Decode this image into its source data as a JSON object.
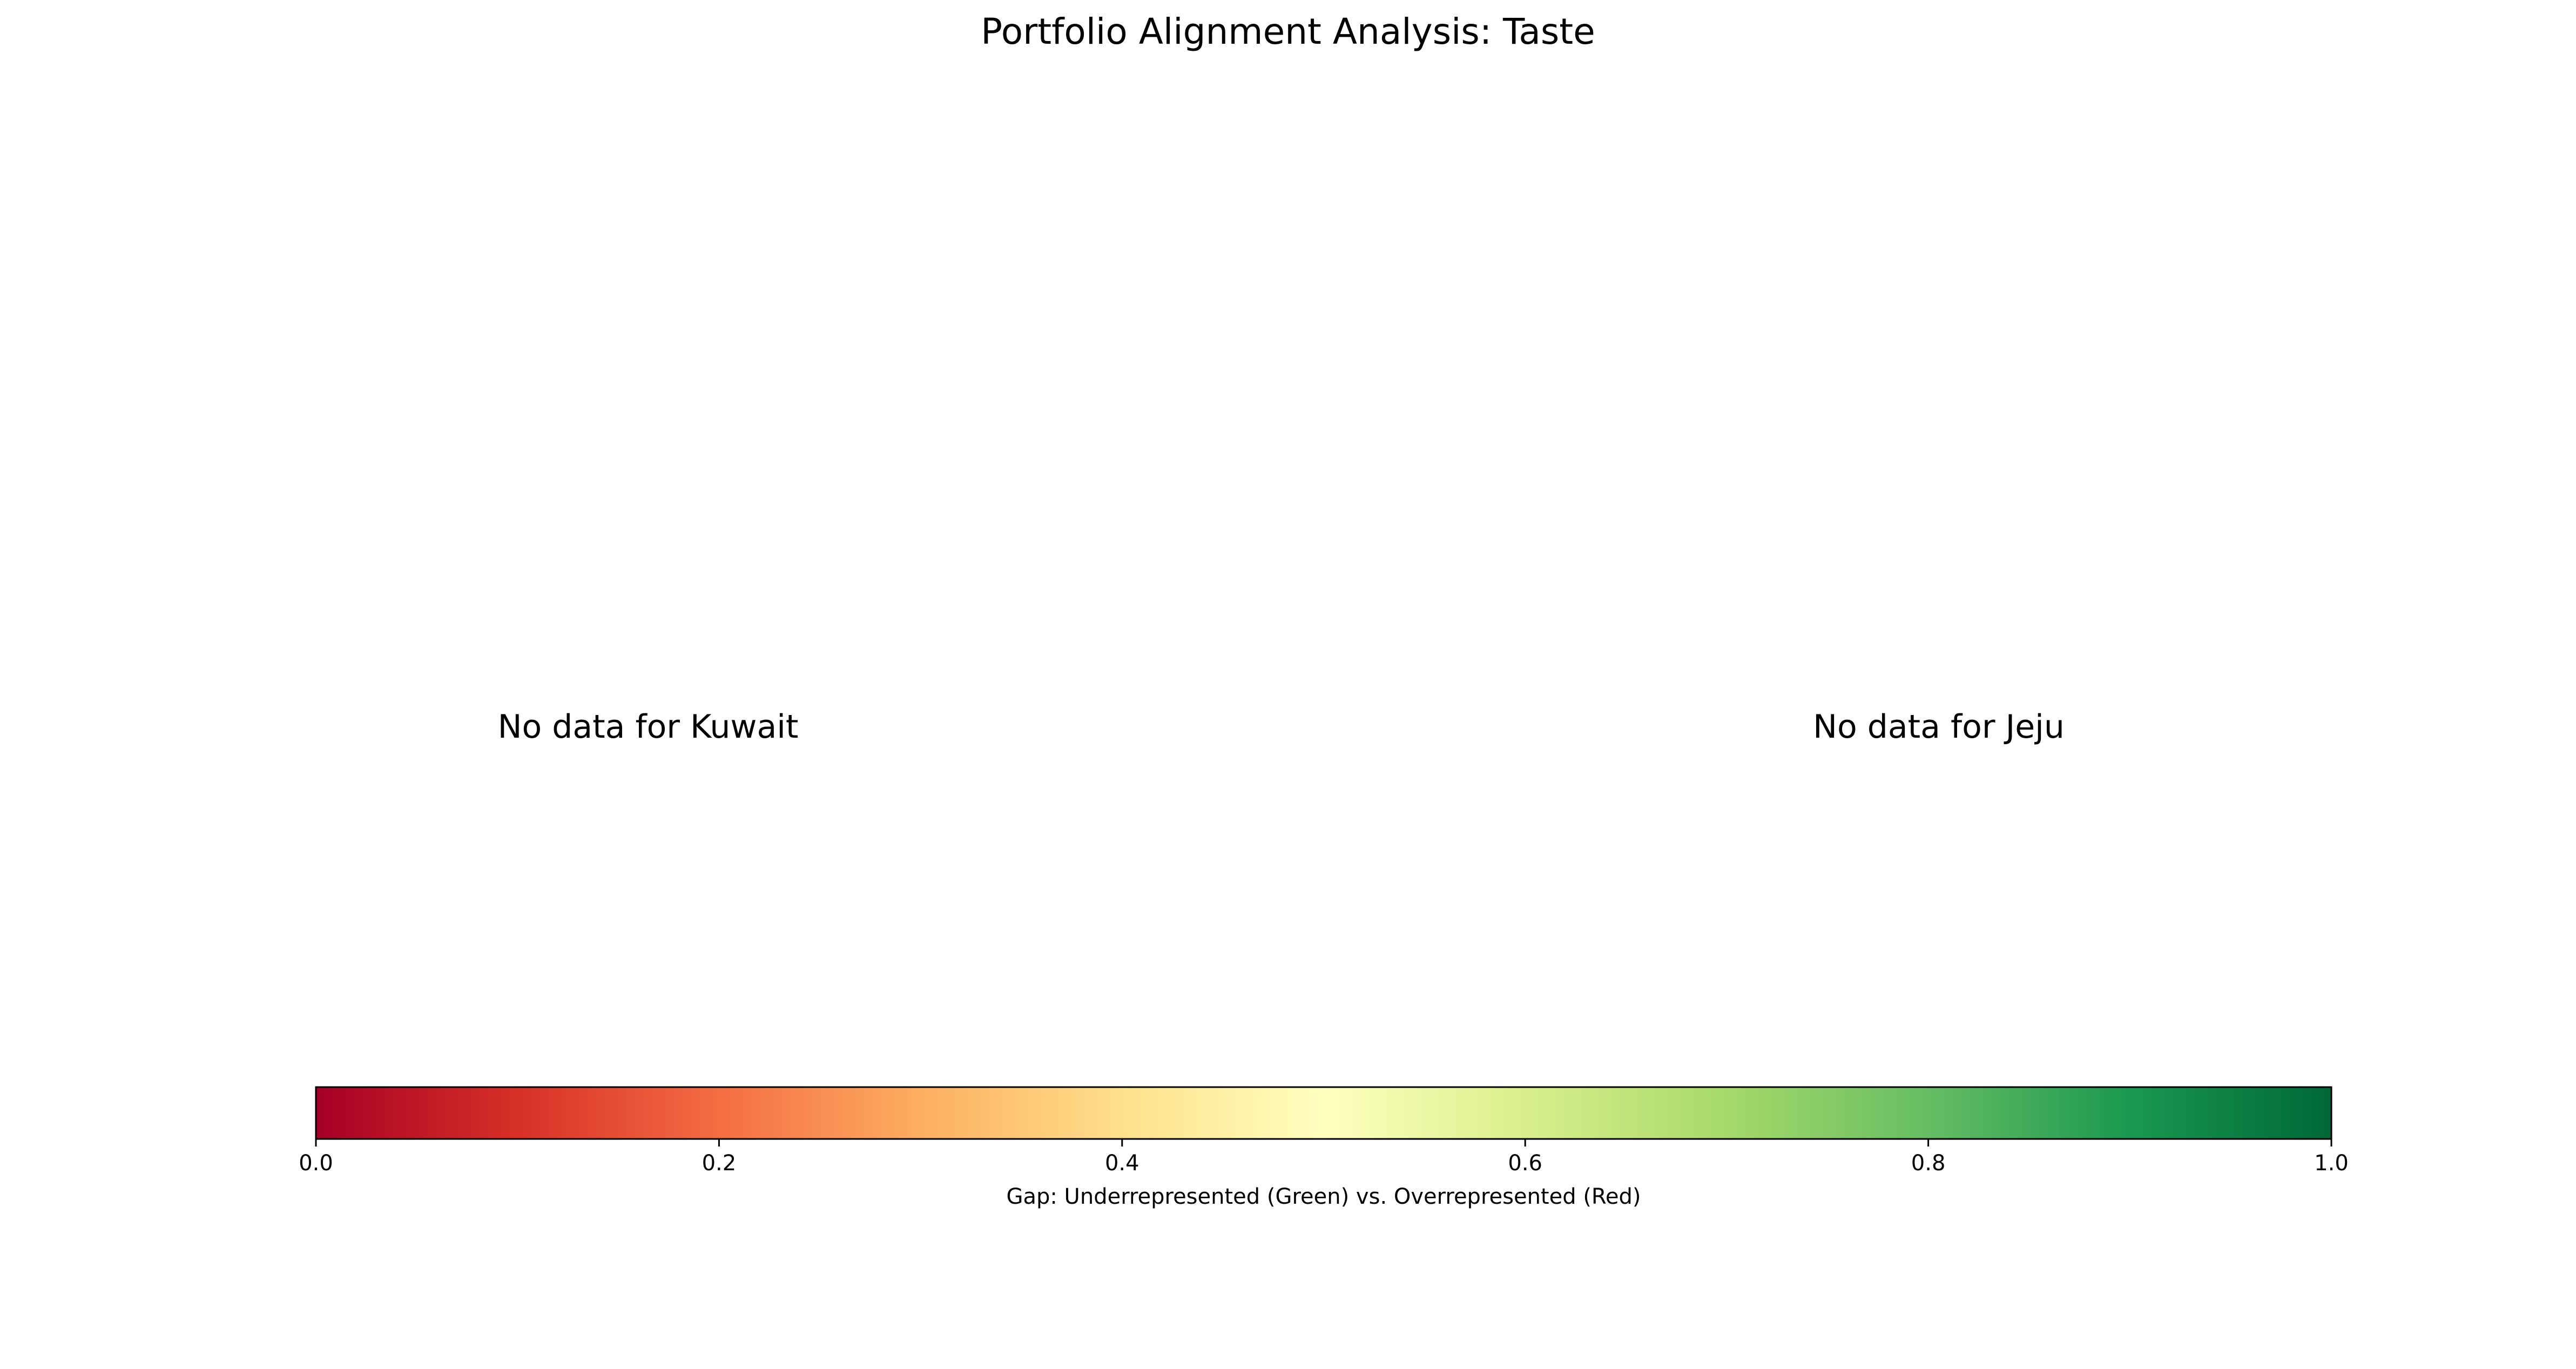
{
  "chart_data": {
    "type": "heatmap",
    "title": "Portfolio Alignment Analysis: Taste",
    "panels": [
      {
        "message": "No data for Kuwait"
      },
      {
        "message": "No data for Jeju"
      }
    ],
    "colorbar": {
      "colormap": "RdYlGn",
      "orientation": "horizontal",
      "range": [
        0.0,
        1.0
      ],
      "ticks": [
        0.0,
        0.2,
        0.4,
        0.6,
        0.8,
        1.0
      ],
      "tick_labels": [
        "0.0",
        "0.2",
        "0.4",
        "0.6",
        "0.8",
        "1.0"
      ],
      "label": "Gap: Underrepresented (Green) vs. Overrepresented (Red)",
      "color_stops": [
        "#a50026",
        "#d73027",
        "#f46d43",
        "#fdae61",
        "#fee08b",
        "#ffffbf",
        "#d9ef8b",
        "#a6d96a",
        "#66bd63",
        "#1a9850",
        "#006837"
      ]
    }
  }
}
